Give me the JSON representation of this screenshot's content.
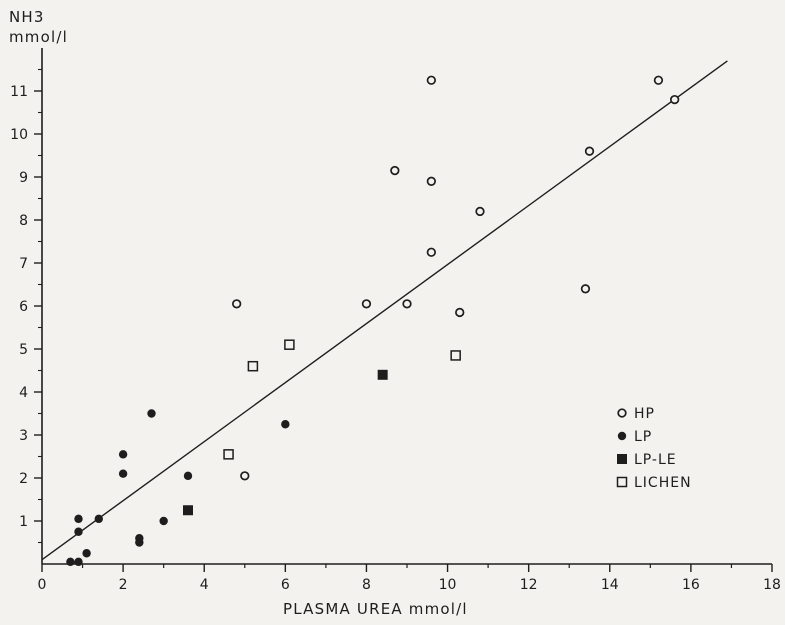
{
  "chart_data": {
    "type": "scatter",
    "xlabel": "PLASMA UREA mmol/l",
    "ylabel_main": "NH3",
    "ylabel_unit": "mmol/l",
    "xlim": [
      0,
      18
    ],
    "ylim": [
      0,
      12
    ],
    "x_ticks": [
      0,
      2,
      4,
      6,
      8,
      10,
      12,
      14,
      16,
      18
    ],
    "y_ticks": [
      1,
      2,
      3,
      4,
      5,
      6,
      7,
      8,
      9,
      10,
      11
    ],
    "grid": false,
    "legend_position": "right",
    "regression_line": {
      "from": [
        0,
        0.1
      ],
      "to": [
        16.9,
        11.7
      ]
    },
    "series": [
      {
        "name": "HP",
        "marker": "open-circle",
        "points": [
          [
            4.8,
            6.05
          ],
          [
            5.0,
            2.05
          ],
          [
            8.0,
            6.05
          ],
          [
            8.7,
            9.15
          ],
          [
            9.0,
            6.05
          ],
          [
            9.6,
            11.25
          ],
          [
            9.6,
            8.9
          ],
          [
            9.6,
            7.25
          ],
          [
            10.3,
            5.85
          ],
          [
            10.8,
            8.2
          ],
          [
            13.4,
            6.4
          ],
          [
            13.5,
            9.6
          ],
          [
            15.2,
            11.25
          ],
          [
            15.6,
            10.8
          ]
        ]
      },
      {
        "name": "LP",
        "marker": "filled-circle",
        "points": [
          [
            0.7,
            0.05
          ],
          [
            0.9,
            0.05
          ],
          [
            0.9,
            0.75
          ],
          [
            0.9,
            1.05
          ],
          [
            1.1,
            0.25
          ],
          [
            1.4,
            1.05
          ],
          [
            2.0,
            2.55
          ],
          [
            2.0,
            2.1
          ],
          [
            2.4,
            0.5
          ],
          [
            2.4,
            0.6
          ],
          [
            2.7,
            3.5
          ],
          [
            3.0,
            1.0
          ],
          [
            3.6,
            2.05
          ],
          [
            6.0,
            3.25
          ]
        ]
      },
      {
        "name": "LP-LE",
        "marker": "filled-square",
        "points": [
          [
            3.6,
            1.25
          ],
          [
            8.4,
            4.4
          ]
        ]
      },
      {
        "name": "LICHEN",
        "marker": "open-square",
        "points": [
          [
            4.6,
            2.55
          ],
          [
            5.2,
            4.6
          ],
          [
            6.1,
            5.1
          ],
          [
            10.2,
            4.85
          ]
        ]
      }
    ]
  }
}
